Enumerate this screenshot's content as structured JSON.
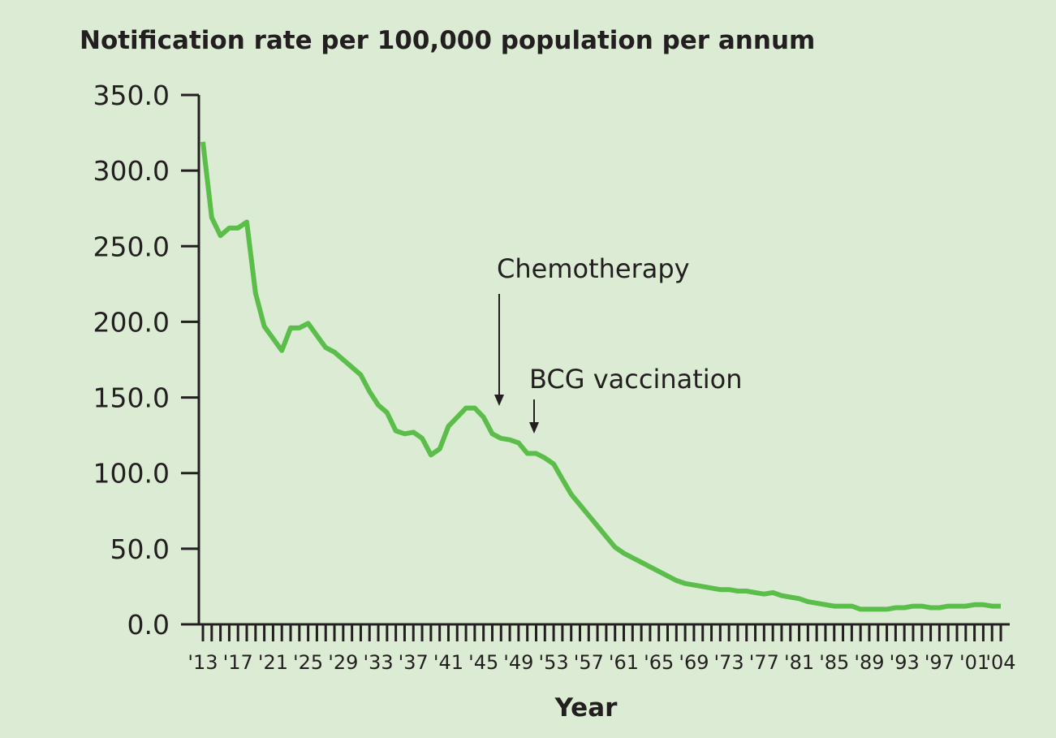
{
  "chart_data": {
    "type": "line",
    "title": "Notification rate per 100,000 population per annum",
    "xlabel": "Year",
    "ylabel": "",
    "ylim": [
      0,
      350
    ],
    "xlim": [
      1913,
      2004
    ],
    "yticks": [
      "0.0",
      "50.0",
      "100.0",
      "150.0",
      "200.0",
      "250.0",
      "300.0",
      "350.0"
    ],
    "ytick_values": [
      0,
      50,
      100,
      150,
      200,
      250,
      300,
      350
    ],
    "xtick_labels": [
      "'13",
      "'17",
      "'21",
      "'25",
      "'29",
      "'33",
      "'37",
      "'41",
      "'45",
      "'49",
      "'53",
      "'57",
      "'61",
      "'65",
      "'69",
      "'73",
      "'77",
      "'81",
      "'85",
      "'89",
      "'93",
      "'97",
      "'01",
      "'04"
    ],
    "xtick_years": [
      1913,
      1917,
      1921,
      1925,
      1929,
      1933,
      1937,
      1941,
      1945,
      1949,
      1953,
      1957,
      1961,
      1965,
      1969,
      1973,
      1977,
      1981,
      1985,
      1989,
      1993,
      1997,
      2001,
      2004
    ],
    "line_color": "#5bbd4a",
    "series": [
      {
        "name": "Notification rate",
        "x": [
          1913,
          1914,
          1915,
          1916,
          1917,
          1918,
          1919,
          1920,
          1921,
          1922,
          1923,
          1924,
          1925,
          1926,
          1927,
          1928,
          1929,
          1930,
          1931,
          1932,
          1933,
          1934,
          1935,
          1936,
          1937,
          1938,
          1939,
          1940,
          1941,
          1942,
          1943,
          1944,
          1945,
          1946,
          1947,
          1948,
          1949,
          1950,
          1951,
          1952,
          1953,
          1954,
          1955,
          1956,
          1957,
          1958,
          1959,
          1960,
          1961,
          1962,
          1963,
          1964,
          1965,
          1966,
          1967,
          1968,
          1969,
          1970,
          1971,
          1972,
          1973,
          1974,
          1975,
          1976,
          1977,
          1978,
          1979,
          1980,
          1981,
          1982,
          1983,
          1984,
          1985,
          1986,
          1987,
          1988,
          1989,
          1990,
          1991,
          1992,
          1993,
          1994,
          1995,
          1996,
          1997,
          1998,
          1999,
          2000,
          2001,
          2002,
          2003,
          2004
        ],
        "values": [
          319,
          269,
          257,
          262,
          262,
          266,
          219,
          197,
          189,
          181,
          196,
          196,
          199,
          191,
          183,
          180,
          175,
          170,
          165,
          154,
          145,
          140,
          128,
          126,
          127,
          123,
          112,
          116,
          131,
          137,
          143,
          143,
          137,
          126,
          123,
          122,
          120,
          113,
          113,
          110,
          106,
          96,
          86,
          79,
          72,
          65,
          58,
          51,
          47,
          44,
          41,
          38,
          35,
          32,
          29,
          27,
          26,
          25,
          24,
          23,
          23,
          22,
          22,
          21,
          20,
          21,
          19,
          18,
          17,
          15,
          14,
          13,
          12,
          12,
          12,
          10,
          10,
          10,
          10,
          11,
          11,
          12,
          12,
          11,
          11,
          12,
          12,
          12,
          13,
          13,
          12,
          12
        ]
      }
    ],
    "annotations": [
      {
        "text": "Chemotherapy",
        "year": 1947
      },
      {
        "text": "BCG vaccination",
        "year": 1951
      }
    ]
  }
}
